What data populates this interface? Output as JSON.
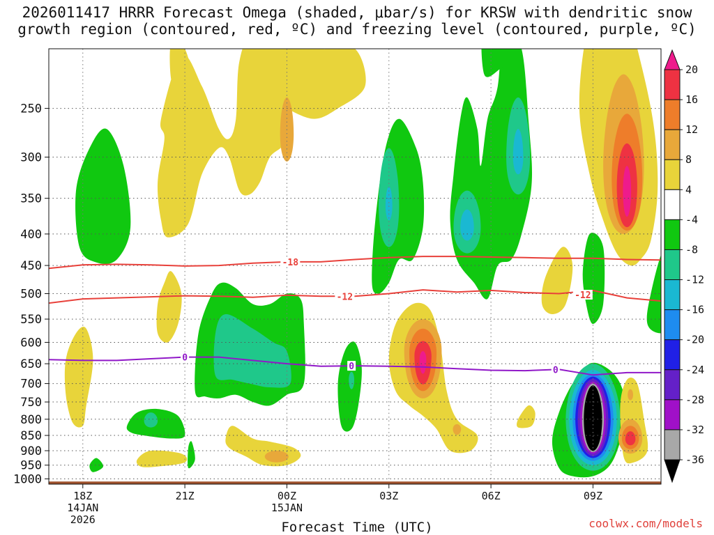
{
  "title": {
    "line1": "2026011417 HRRR Forecast Omega (shaded, μbar/s) for KRSW with dendritic snow",
    "line2": "growth region (contoured, red, ºC) and freezing level (contoured, purple, ºC)"
  },
  "credit": "coolwx.com/models",
  "chart_data": {
    "type": "time-height cross-section",
    "xlabel": "Forecast Time (UTC)",
    "ylabel": "",
    "x_ticks": [
      {
        "label": "18Z",
        "sub1": "14JAN",
        "sub2": "2026",
        "hour": 18
      },
      {
        "label": "21Z",
        "sub1": "",
        "sub2": "",
        "hour": 21
      },
      {
        "label": "00Z",
        "sub1": "15JAN",
        "sub2": "",
        "hour": 24
      },
      {
        "label": "03Z",
        "sub1": "",
        "sub2": "",
        "hour": 27
      },
      {
        "label": "06Z",
        "sub1": "",
        "sub2": "",
        "hour": 30
      },
      {
        "label": "09Z",
        "sub1": "",
        "sub2": "",
        "hour": 33
      }
    ],
    "xlim": [
      17,
      35
    ],
    "ylim": [
      1020,
      200
    ],
    "y_ticks": [
      250,
      300,
      350,
      400,
      450,
      500,
      550,
      600,
      650,
      700,
      750,
      800,
      850,
      900,
      950,
      1000
    ],
    "colorbar": {
      "labels": [
        "20",
        "16",
        "12",
        "8",
        "4",
        "-4",
        "-8",
        "-12",
        "-16",
        "-20",
        "-24",
        "-28",
        "-32",
        "-36"
      ],
      "bands": [
        {
          "range": "12 to 16",
          "color": "#ee7d2a"
        },
        {
          "range": "8 to 12",
          "color": "#e8a83a"
        },
        {
          "range": "4 to 8",
          "color": "#e8d43a"
        },
        {
          "range": "-4 to 4",
          "color": "#ffffff"
        },
        {
          "range": "-8 to -4",
          "color": "#10c810"
        },
        {
          "range": "-12 to -8",
          "color": "#1fc88a"
        },
        {
          "range": "-16 to -12",
          "color": "#1ab8d2"
        },
        {
          "range": "-20 to -16",
          "color": "#1e8cf0"
        },
        {
          "range": "-24 to -20",
          "color": "#2020e6"
        },
        {
          "range": "-28 to -24",
          "color": "#6420c8"
        },
        {
          "range": "-32 to -28",
          "color": "#a010c8"
        },
        {
          "range": "-36 to -32",
          "color": "#a8a8a8"
        }
      ],
      "top_band": {
        "range": "16 to 20",
        "color": "#ee3242"
      },
      "over_color": "#ee1b8c",
      "under_color": "#000000"
    },
    "contours": [
      {
        "label": "-18",
        "color": "#e8403a",
        "points": [
          [
            17,
            455
          ],
          [
            18,
            449
          ],
          [
            19,
            448
          ],
          [
            20,
            449
          ],
          [
            21,
            451
          ],
          [
            22,
            450
          ],
          [
            23,
            446
          ],
          [
            24,
            444
          ],
          [
            25,
            444
          ],
          [
            26,
            440
          ],
          [
            27,
            437
          ],
          [
            28,
            435
          ],
          [
            29,
            435
          ],
          [
            30,
            436
          ],
          [
            31,
            437
          ],
          [
            32,
            438
          ],
          [
            33,
            438
          ],
          [
            34,
            440
          ],
          [
            35,
            441
          ]
        ],
        "label_hour": 24.1
      },
      {
        "label": "-12",
        "color": "#e8403a",
        "points": [
          [
            17,
            518
          ],
          [
            18,
            510
          ],
          [
            19,
            508
          ],
          [
            20,
            506
          ],
          [
            21,
            504
          ],
          [
            22,
            505
          ],
          [
            23,
            507
          ],
          [
            24,
            503
          ],
          [
            25,
            505
          ],
          [
            26,
            505
          ],
          [
            27,
            500
          ],
          [
            28,
            493
          ],
          [
            29,
            497
          ],
          [
            30,
            494
          ],
          [
            31,
            498
          ],
          [
            32,
            500
          ],
          [
            33,
            494
          ],
          [
            34,
            508
          ],
          [
            35,
            514
          ]
        ],
        "label_hour": 25.7
      },
      {
        "label": "-12",
        "color": "#e8403a",
        "points": [],
        "label_hour": 32.7,
        "label_p": 502
      },
      {
        "label": "0",
        "color": "#9018c8",
        "points": [
          [
            17,
            640
          ],
          [
            18,
            642
          ],
          [
            19,
            642
          ],
          [
            20,
            638
          ],
          [
            21,
            634
          ],
          [
            22,
            634
          ],
          [
            23,
            642
          ],
          [
            24,
            650
          ],
          [
            25,
            656
          ],
          [
            26,
            655
          ],
          [
            27,
            656
          ],
          [
            28,
            658
          ],
          [
            29,
            662
          ],
          [
            30,
            666
          ],
          [
            31,
            667
          ],
          [
            32,
            664
          ],
          [
            33,
            678
          ],
          [
            34,
            672
          ],
          [
            35,
            672
          ]
        ],
        "label_hour": 21.0
      },
      {
        "label": "0",
        "color": "#9018c8",
        "points": [],
        "label_hour": 25.9,
        "label_p": 655
      },
      {
        "label": "0",
        "color": "#9018c8",
        "points": [],
        "label_hour": 31.9,
        "label_p": 664
      }
    ],
    "omega_features": [
      {
        "level": "-8 to -4",
        "color": "#10c810",
        "center_hour": 18.5,
        "center_p": 355
      },
      {
        "level": "4 to 8",
        "color": "#e8d43a",
        "center_hour": 22.5,
        "center_p": 300
      },
      {
        "level": "-12 to -8",
        "color": "#1fc88a",
        "center_hour": 23.3,
        "center_p": 640
      },
      {
        "level": "16 to 20",
        "color": "#ee3242",
        "center_hour": 28.0,
        "center_p": 640
      },
      {
        "level": "-12 to -8",
        "color": "#1fc88a",
        "center_hour": 29.5,
        "center_p": 380
      },
      {
        "level": "20+",
        "color": "#ee1b8c",
        "center_hour": 34.0,
        "center_p": 340
      },
      {
        "level": "-36-",
        "color": "#000000",
        "center_hour": 33.0,
        "center_p": 800
      },
      {
        "level": "16 to 20",
        "color": "#ee3242",
        "center_hour": 34.0,
        "center_p": 860
      }
    ]
  }
}
